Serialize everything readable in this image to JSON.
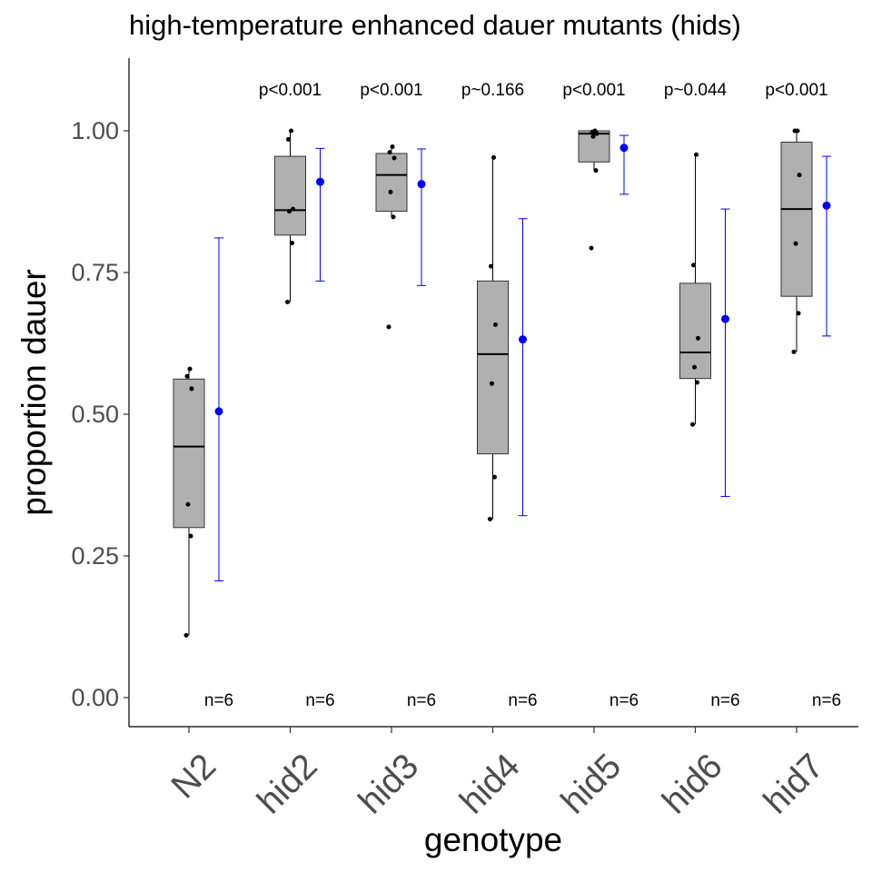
{
  "chart_data": {
    "type": "box",
    "title": "high-temperature enhanced dauer mutants (hids)",
    "xlabel": "genotype",
    "ylabel": "proportion dauer",
    "categories": [
      "N2",
      "hid2",
      "hid3",
      "hid4",
      "hid5",
      "hid6",
      "hid7"
    ],
    "ylim": [
      -0.05,
      1.13
    ],
    "yticks": [
      0.0,
      0.25,
      0.5,
      0.75,
      1.0
    ],
    "ytick_labels": [
      "0.00",
      "0.25",
      "0.50",
      "0.75",
      "1.00"
    ],
    "grid": false,
    "boxes": [
      {
        "min": 0.11,
        "q1": 0.3,
        "median": 0.443,
        "q3": 0.562,
        "max": 0.58
      },
      {
        "min": 0.698,
        "q1": 0.816,
        "median": 0.86,
        "q3": 0.955,
        "max": 1.0
      },
      {
        "min": 0.848,
        "q1": 0.858,
        "median": 0.922,
        "q3": 0.96,
        "max": 0.972,
        "outliers": [
          0.654
        ]
      },
      {
        "min": 0.315,
        "q1": 0.43,
        "median": 0.606,
        "q3": 0.735,
        "max": 0.953
      },
      {
        "min": 0.93,
        "q1": 0.945,
        "median": 0.995,
        "q3": 1.0,
        "max": 1.0,
        "outliers": [
          0.793
        ]
      },
      {
        "min": 0.482,
        "q1": 0.563,
        "median": 0.609,
        "q3": 0.731,
        "max": 0.958
      },
      {
        "min": 0.61,
        "q1": 0.708,
        "median": 0.862,
        "q3": 0.98,
        "max": 1.0
      }
    ],
    "points": [
      [
        0.11,
        0.285,
        0.341,
        0.545,
        0.567,
        0.58
      ],
      [
        0.698,
        0.802,
        0.858,
        0.862,
        0.985,
        1.0
      ],
      [
        0.654,
        0.848,
        0.892,
        0.952,
        0.962,
        0.972
      ],
      [
        0.315,
        0.389,
        0.554,
        0.658,
        0.761,
        0.953
      ],
      [
        0.793,
        0.93,
        0.99,
        0.995,
        0.998,
        1.0
      ],
      [
        0.482,
        0.556,
        0.583,
        0.634,
        0.763,
        0.958
      ],
      [
        0.61,
        0.678,
        0.801,
        0.922,
        1.0,
        1.0
      ]
    ],
    "estimates": [
      {
        "mean": 0.505,
        "lower": 0.206,
        "upper": 0.811
      },
      {
        "mean": 0.91,
        "lower": 0.735,
        "upper": 0.969
      },
      {
        "mean": 0.906,
        "lower": 0.727,
        "upper": 0.968
      },
      {
        "mean": 0.632,
        "lower": 0.321,
        "upper": 0.845
      },
      {
        "mean": 0.97,
        "lower": 0.888,
        "upper": 0.992
      },
      {
        "mean": 0.668,
        "lower": 0.355,
        "upper": 0.862
      },
      {
        "mean": 0.868,
        "lower": 0.638,
        "upper": 0.955
      }
    ],
    "pvalues": [
      "",
      "p<0.001",
      "p<0.001",
      "p~0.166",
      "p<0.001",
      "p~0.044",
      "p<0.001"
    ],
    "counts": [
      "n=6",
      "n=6",
      "n=6",
      "n=6",
      "n=6",
      "n=6",
      "n=6"
    ],
    "colors": {
      "box_fill": "#b0b0b0",
      "estimate": "#0000ff",
      "points": "#000000",
      "axis": "#000000"
    }
  }
}
